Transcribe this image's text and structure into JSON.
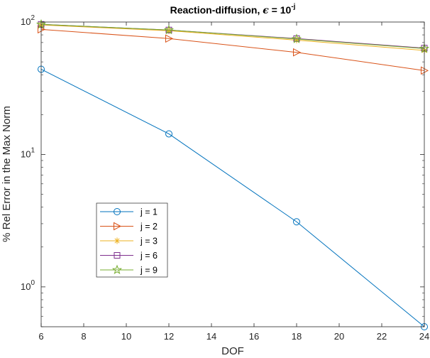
{
  "chart_data": {
    "type": "line",
    "title": {
      "prefix": "Reaction-diffusion, ",
      "symbol": "ϵ",
      "equals": " = 10",
      "superscript": "-j"
    },
    "xlabel": "DOF",
    "ylabel": "% Rel Error in the Max Norm",
    "xlim": [
      6,
      24
    ],
    "ylim": [
      0.5,
      100
    ],
    "yscale": "log",
    "x": [
      6,
      12,
      18,
      24
    ],
    "x_ticks": [
      "6",
      "8",
      "10",
      "12",
      "14",
      "16",
      "18",
      "20",
      "22",
      "24"
    ],
    "y_ticks": [
      {
        "base": "10",
        "exp": "0",
        "value": 1
      },
      {
        "base": "10",
        "exp": "1",
        "value": 10
      },
      {
        "base": "10",
        "exp": "2",
        "value": 100
      }
    ],
    "legend_position": "lower-left",
    "series": [
      {
        "name": "j = 1",
        "color": "#0072BD",
        "marker": "circle",
        "values": [
          44,
          14.3,
          3.1,
          0.5
        ]
      },
      {
        "name": "j = 2",
        "color": "#D95319",
        "marker": "triangle-right",
        "values": [
          88,
          75,
          59,
          43
        ]
      },
      {
        "name": "j = 3",
        "color": "#EDB120",
        "marker": "asterisk",
        "values": [
          95,
          86,
          73,
          61
        ]
      },
      {
        "name": "j = 6",
        "color": "#7E2F8E",
        "marker": "square",
        "values": [
          96,
          87,
          75,
          63.5
        ]
      },
      {
        "name": "j = 9",
        "color": "#77AC30",
        "marker": "pentagram",
        "values": [
          96,
          87,
          74.5,
          63
        ]
      }
    ]
  }
}
